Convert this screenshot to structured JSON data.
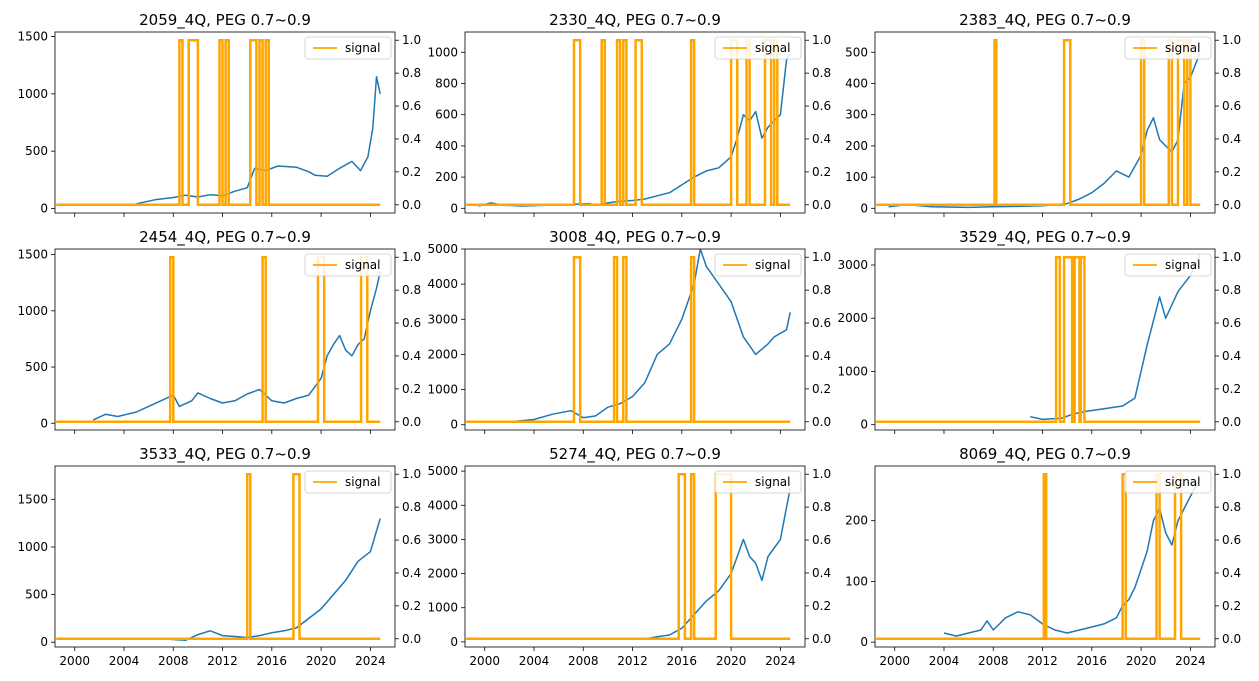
{
  "figure": {
    "colors": {
      "price": "#1f77b4",
      "signal": "#ffa500",
      "axes": "#000000",
      "legend_border": "#cccccc"
    }
  },
  "chart_data": [
    {
      "type": "line",
      "title": "2059_4Q, PEG 0.7~0.9",
      "x_range": [
        1998.4,
        2026.0
      ],
      "ylim": [
        -40,
        1540
      ],
      "y_ticks": [
        0,
        500,
        1000,
        1500
      ],
      "y2lim": [
        -0.05,
        1.05
      ],
      "y2_ticks": [
        0.0,
        0.2,
        0.4,
        0.6,
        0.8,
        1.0
      ],
      "x_ticks": [],
      "legend": {
        "label": "signal",
        "position": "upper right"
      },
      "price_series": [
        [
          2005.0,
          40
        ],
        [
          2006.5,
          75
        ],
        [
          2008.0,
          95
        ],
        [
          2009.0,
          115
        ],
        [
          2010.0,
          100
        ],
        [
          2011.0,
          120
        ],
        [
          2012.0,
          110
        ],
        [
          2013.0,
          150
        ],
        [
          2014.0,
          180
        ],
        [
          2014.6,
          350
        ],
        [
          2015.5,
          330
        ],
        [
          2016.5,
          370
        ],
        [
          2018.0,
          360
        ],
        [
          2019.0,
          320
        ],
        [
          2019.5,
          290
        ],
        [
          2020.5,
          280
        ],
        [
          2021.5,
          350
        ],
        [
          2022.5,
          410
        ],
        [
          2023.2,
          330
        ],
        [
          2023.8,
          450
        ],
        [
          2024.2,
          700
        ],
        [
          2024.5,
          1150
        ],
        [
          2024.8,
          1000
        ]
      ],
      "signal_on": [
        [
          2008.5,
          2008.75
        ],
        [
          2009.25,
          2010.0
        ],
        [
          2011.75,
          2012.0
        ],
        [
          2012.25,
          2012.5
        ],
        [
          2014.25,
          2014.75
        ],
        [
          2015.0,
          2015.25
        ],
        [
          2015.5,
          2015.75
        ]
      ]
    },
    {
      "type": "line",
      "title": "2330_4Q, PEG 0.7~0.9",
      "x_range": [
        1998.4,
        2026.0
      ],
      "ylim": [
        -30,
        1130
      ],
      "y_ticks": [
        0,
        200,
        400,
        600,
        800,
        1000
      ],
      "y2lim": [
        -0.05,
        1.05
      ],
      "y2_ticks": [
        0.0,
        0.2,
        0.4,
        0.6,
        0.8,
        1.0
      ],
      "x_ticks": [],
      "legend": {
        "label": "signal",
        "position": "upper right"
      },
      "price_series": [
        [
          1999.5,
          15
        ],
        [
          2000.5,
          35
        ],
        [
          2001.5,
          20
        ],
        [
          2003.0,
          15
        ],
        [
          2005.0,
          20
        ],
        [
          2007.0,
          25
        ],
        [
          2008.5,
          30
        ],
        [
          2009.0,
          20
        ],
        [
          2010.0,
          35
        ],
        [
          2011.0,
          45
        ],
        [
          2012.0,
          50
        ],
        [
          2013.0,
          60
        ],
        [
          2014.0,
          80
        ],
        [
          2015.0,
          100
        ],
        [
          2016.0,
          150
        ],
        [
          2017.0,
          200
        ],
        [
          2018.0,
          240
        ],
        [
          2019.0,
          260
        ],
        [
          2020.0,
          330
        ],
        [
          2020.5,
          450
        ],
        [
          2021.0,
          600
        ],
        [
          2021.5,
          560
        ],
        [
          2022.0,
          620
        ],
        [
          2022.5,
          450
        ],
        [
          2023.0,
          520
        ],
        [
          2023.5,
          560
        ],
        [
          2024.0,
          600
        ],
        [
          2024.5,
          950
        ],
        [
          2024.8,
          1000
        ]
      ],
      "signal_on": [
        [
          2007.25,
          2007.75
        ],
        [
          2009.5,
          2009.75
        ],
        [
          2010.75,
          2011.0
        ],
        [
          2011.25,
          2011.5
        ],
        [
          2012.25,
          2012.75
        ],
        [
          2016.75,
          2017.0
        ],
        [
          2020.0,
          2020.5
        ],
        [
          2021.25,
          2021.5
        ],
        [
          2022.75,
          2023.25
        ],
        [
          2023.5,
          2023.75
        ]
      ]
    },
    {
      "type": "line",
      "title": "2383_4Q, PEG 0.7~0.9",
      "x_range": [
        1998.4,
        2026.0
      ],
      "ylim": [
        -15,
        565
      ],
      "y_ticks": [
        0,
        100,
        200,
        300,
        400,
        500
      ],
      "y2lim": [
        -0.05,
        1.05
      ],
      "y2_ticks": [
        0.0,
        0.2,
        0.4,
        0.6,
        0.8,
        1.0
      ],
      "x_ticks": [],
      "legend": {
        "label": "signal",
        "position": "upper right"
      },
      "price_series": [
        [
          1999.5,
          5
        ],
        [
          2001.0,
          12
        ],
        [
          2003.0,
          5
        ],
        [
          2006.0,
          3
        ],
        [
          2008.0,
          5
        ],
        [
          2010.0,
          6
        ],
        [
          2012.0,
          8
        ],
        [
          2014.0,
          15
        ],
        [
          2015.0,
          30
        ],
        [
          2016.0,
          50
        ],
        [
          2017.0,
          80
        ],
        [
          2018.0,
          120
        ],
        [
          2019.0,
          100
        ],
        [
          2020.0,
          170
        ],
        [
          2020.5,
          250
        ],
        [
          2021.0,
          290
        ],
        [
          2021.5,
          220
        ],
        [
          2022.0,
          200
        ],
        [
          2022.5,
          180
        ],
        [
          2023.0,
          220
        ],
        [
          2023.5,
          400
        ],
        [
          2024.0,
          420
        ],
        [
          2024.8,
          500
        ]
      ],
      "signal_on": [
        [
          2008.1,
          2008.25
        ],
        [
          2013.75,
          2014.25
        ],
        [
          2020.0,
          2020.25
        ],
        [
          2022.25,
          2022.5
        ],
        [
          2023.0,
          2023.5
        ],
        [
          2023.75,
          2024.0
        ]
      ]
    },
    {
      "type": "line",
      "title": "2454_4Q, PEG 0.7~0.9",
      "x_range": [
        1998.4,
        2026.0
      ],
      "ylim": [
        -60,
        1550
      ],
      "y_ticks": [
        0,
        500,
        1000,
        1500
      ],
      "y2lim": [
        -0.05,
        1.05
      ],
      "y2_ticks": [
        0.0,
        0.2,
        0.4,
        0.6,
        0.8,
        1.0
      ],
      "x_ticks": [],
      "legend": {
        "label": "signal",
        "position": "upper right"
      },
      "price_series": [
        [
          2001.5,
          30
        ],
        [
          2002.5,
          80
        ],
        [
          2003.5,
          60
        ],
        [
          2005.0,
          100
        ],
        [
          2006.0,
          150
        ],
        [
          2007.0,
          200
        ],
        [
          2008.0,
          250
        ],
        [
          2008.5,
          150
        ],
        [
          2009.5,
          200
        ],
        [
          2010.0,
          270
        ],
        [
          2011.0,
          220
        ],
        [
          2012.0,
          180
        ],
        [
          2013.0,
          200
        ],
        [
          2014.0,
          260
        ],
        [
          2015.0,
          300
        ],
        [
          2016.0,
          200
        ],
        [
          2017.0,
          180
        ],
        [
          2018.0,
          220
        ],
        [
          2019.0,
          250
        ],
        [
          2020.0,
          400
        ],
        [
          2020.5,
          600
        ],
        [
          2021.0,
          700
        ],
        [
          2021.5,
          780
        ],
        [
          2022.0,
          650
        ],
        [
          2022.5,
          600
        ],
        [
          2023.0,
          700
        ],
        [
          2023.5,
          750
        ],
        [
          2024.0,
          1000
        ],
        [
          2024.5,
          1200
        ],
        [
          2024.8,
          1350
        ]
      ],
      "signal_on": [
        [
          2007.75,
          2008.0
        ],
        [
          2015.25,
          2015.5
        ],
        [
          2019.75,
          2020.25
        ],
        [
          2023.25,
          2023.75
        ]
      ]
    },
    {
      "type": "line",
      "title": "3008_4Q, PEG 0.7~0.9",
      "x_range": [
        1998.4,
        2026.0
      ],
      "ylim": [
        -150,
        5000
      ],
      "y_ticks": [
        0,
        1000,
        2000,
        3000,
        4000,
        5000
      ],
      "y2lim": [
        -0.05,
        1.05
      ],
      "y2_ticks": [
        0.0,
        0.2,
        0.4,
        0.6,
        0.8,
        1.0
      ],
      "x_ticks": [],
      "legend": {
        "label": "signal",
        "position": "upper right"
      },
      "price_series": [
        [
          2002.5,
          100
        ],
        [
          2004.0,
          150
        ],
        [
          2005.5,
          300
        ],
        [
          2007.0,
          400
        ],
        [
          2008.0,
          200
        ],
        [
          2009.0,
          250
        ],
        [
          2010.0,
          500
        ],
        [
          2011.0,
          600
        ],
        [
          2012.0,
          800
        ],
        [
          2013.0,
          1200
        ],
        [
          2014.0,
          2000
        ],
        [
          2015.0,
          2300
        ],
        [
          2016.0,
          3000
        ],
        [
          2017.0,
          4000
        ],
        [
          2017.5,
          5000
        ],
        [
          2018.0,
          4500
        ],
        [
          2019.0,
          4000
        ],
        [
          2020.0,
          3500
        ],
        [
          2021.0,
          2500
        ],
        [
          2022.0,
          2000
        ],
        [
          2023.0,
          2300
        ],
        [
          2023.5,
          2500
        ],
        [
          2024.5,
          2700
        ],
        [
          2024.8,
          3200
        ]
      ],
      "signal_on": [
        [
          2007.25,
          2007.75
        ],
        [
          2010.5,
          2010.75
        ],
        [
          2011.25,
          2011.5
        ],
        [
          2016.75,
          2017.0
        ]
      ]
    },
    {
      "type": "line",
      "title": "3529_4Q, PEG 0.7~0.9",
      "x_range": [
        1998.4,
        2026.0
      ],
      "ylim": [
        -100,
        3300
      ],
      "y_ticks": [
        0,
        1000,
        2000,
        3000
      ],
      "y2lim": [
        -0.05,
        1.05
      ],
      "y2_ticks": [
        0.0,
        0.2,
        0.4,
        0.6,
        0.8,
        1.0
      ],
      "x_ticks": [],
      "legend": {
        "label": "signal",
        "position": "upper right"
      },
      "price_series": [
        [
          2011.0,
          150
        ],
        [
          2012.0,
          100
        ],
        [
          2013.5,
          120
        ],
        [
          2014.5,
          200
        ],
        [
          2015.5,
          250
        ],
        [
          2017.0,
          300
        ],
        [
          2018.5,
          350
        ],
        [
          2019.5,
          500
        ],
        [
          2020.5,
          1500
        ],
        [
          2021.5,
          2400
        ],
        [
          2022.0,
          2000
        ],
        [
          2023.0,
          2500
        ],
        [
          2024.0,
          2800
        ],
        [
          2024.8,
          3200
        ]
      ],
      "signal_on": [
        [
          2013.1,
          2013.4
        ],
        [
          2013.75,
          2014.4
        ],
        [
          2014.6,
          2015.0
        ],
        [
          2015.1,
          2015.4
        ]
      ]
    },
    {
      "type": "line",
      "title": "3533_4Q, PEG 0.7~0.9",
      "x_range": [
        1998.4,
        2026.0
      ],
      "ylim": [
        -50,
        1850
      ],
      "y_ticks": [
        0,
        500,
        1000,
        1500
      ],
      "y2lim": [
        -0.05,
        1.05
      ],
      "y2_ticks": [
        0.0,
        0.2,
        0.4,
        0.6,
        0.8,
        1.0
      ],
      "x_ticks": [
        2000,
        2004,
        2008,
        2012,
        2016,
        2020,
        2024
      ],
      "legend": {
        "label": "signal",
        "position": "upper right"
      },
      "price_series": [
        [
          2007.8,
          30
        ],
        [
          2009.0,
          20
        ],
        [
          2010.0,
          80
        ],
        [
          2011.0,
          120
        ],
        [
          2012.0,
          70
        ],
        [
          2013.0,
          60
        ],
        [
          2014.0,
          50
        ],
        [
          2015.0,
          70
        ],
        [
          2016.0,
          100
        ],
        [
          2017.0,
          120
        ],
        [
          2018.0,
          150
        ],
        [
          2019.0,
          250
        ],
        [
          2020.0,
          350
        ],
        [
          2021.0,
          500
        ],
        [
          2022.0,
          650
        ],
        [
          2023.0,
          850
        ],
        [
          2024.0,
          950
        ],
        [
          2024.8,
          1300
        ]
      ],
      "signal_on": [
        [
          2014.0,
          2014.25
        ],
        [
          2017.75,
          2018.25
        ]
      ]
    },
    {
      "type": "line",
      "title": "5274_4Q, PEG 0.7~0.9",
      "x_range": [
        1998.4,
        2026.0
      ],
      "ylim": [
        -150,
        5150
      ],
      "y_ticks": [
        0,
        1000,
        2000,
        3000,
        4000,
        5000
      ],
      "y2lim": [
        -0.05,
        1.05
      ],
      "y2_ticks": [
        0.0,
        0.2,
        0.4,
        0.6,
        0.8,
        1.0
      ],
      "x_ticks": [
        2000,
        2004,
        2008,
        2012,
        2016,
        2020,
        2024
      ],
      "legend": {
        "label": "signal",
        "position": "upper right"
      },
      "price_series": [
        [
          2013.2,
          100
        ],
        [
          2014.0,
          150
        ],
        [
          2015.0,
          200
        ],
        [
          2016.0,
          400
        ],
        [
          2017.0,
          800
        ],
        [
          2018.0,
          1200
        ],
        [
          2019.0,
          1500
        ],
        [
          2020.0,
          2000
        ],
        [
          2021.0,
          3000
        ],
        [
          2021.5,
          2500
        ],
        [
          2022.0,
          2300
        ],
        [
          2022.5,
          1800
        ],
        [
          2023.0,
          2500
        ],
        [
          2024.0,
          3000
        ],
        [
          2024.8,
          4500
        ]
      ],
      "signal_on": [
        [
          2015.75,
          2016.25
        ],
        [
          2016.75,
          2017.0
        ],
        [
          2018.75,
          2020.0
        ]
      ]
    },
    {
      "type": "line",
      "title": "8069_4Q, PEG 0.7~0.9",
      "x_range": [
        1998.4,
        2026.0
      ],
      "ylim": [
        -8,
        290
      ],
      "y_ticks": [
        0,
        100,
        200
      ],
      "y2lim": [
        -0.05,
        1.05
      ],
      "y2_ticks": [
        0.0,
        0.2,
        0.4,
        0.6,
        0.8,
        1.0
      ],
      "x_ticks": [
        2000,
        2004,
        2008,
        2012,
        2016,
        2020,
        2024
      ],
      "legend": {
        "label": "signal",
        "position": "upper right"
      },
      "price_series": [
        [
          2004.0,
          15
        ],
        [
          2005.0,
          10
        ],
        [
          2006.0,
          15
        ],
        [
          2007.0,
          20
        ],
        [
          2007.5,
          35
        ],
        [
          2008.0,
          20
        ],
        [
          2009.0,
          40
        ],
        [
          2010.0,
          50
        ],
        [
          2011.0,
          45
        ],
        [
          2012.0,
          30
        ],
        [
          2013.0,
          20
        ],
        [
          2014.0,
          15
        ],
        [
          2015.0,
          20
        ],
        [
          2016.0,
          25
        ],
        [
          2017.0,
          30
        ],
        [
          2018.0,
          40
        ],
        [
          2018.5,
          60
        ],
        [
          2019.0,
          70
        ],
        [
          2019.5,
          90
        ],
        [
          2020.0,
          120
        ],
        [
          2020.5,
          150
        ],
        [
          2021.0,
          200
        ],
        [
          2021.5,
          220
        ],
        [
          2022.0,
          180
        ],
        [
          2022.5,
          160
        ],
        [
          2023.0,
          200
        ],
        [
          2024.0,
          240
        ],
        [
          2024.8,
          270
        ]
      ],
      "signal_on": [
        [
          2012.1,
          2012.3
        ],
        [
          2018.5,
          2018.75
        ],
        [
          2021.25,
          2021.5
        ],
        [
          2022.75,
          2023.25
        ]
      ]
    }
  ]
}
